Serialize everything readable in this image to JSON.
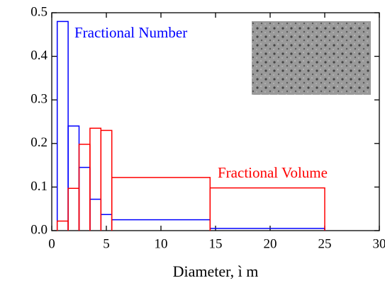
{
  "chart_data": {
    "type": "histogram",
    "x_label": "Diameter, ì m",
    "bins": [
      0.5,
      1.5,
      2.5,
      3.5,
      4.5,
      5.5,
      14.5,
      25
    ],
    "series": [
      {
        "name": "Fractional Number",
        "color": "#0000ff",
        "values": [
          0.48,
          0.24,
          0.145,
          0.072,
          0.037,
          0.025,
          0.005
        ]
      },
      {
        "name": "Fractional Volume",
        "color": "#ff0000",
        "values": [
          0.022,
          0.097,
          0.198,
          0.235,
          0.23,
          0.122,
          0.098
        ]
      }
    ],
    "xlim": [
      0,
      30
    ],
    "xticks": [
      0,
      5,
      10,
      15,
      20,
      25,
      30
    ],
    "ylim": [
      0,
      0.5
    ],
    "yticks": [
      {
        "value": 0,
        "label": "0.0"
      },
      0.1,
      0.2,
      0.3,
      0.4,
      0.5
    ]
  }
}
